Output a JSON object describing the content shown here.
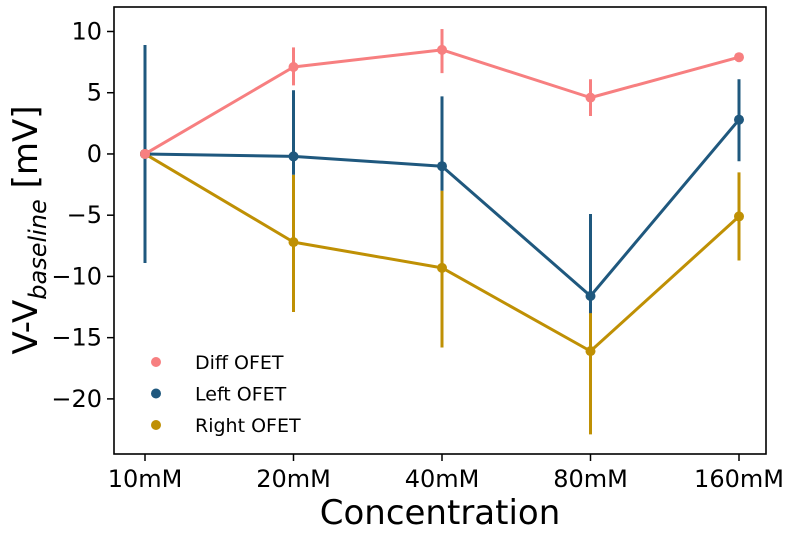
{
  "chart_data": {
    "type": "line",
    "title": "",
    "xlabel": "Concentration",
    "ylabel": {
      "main": "V-V",
      "subscript": "baseline",
      "unit": " [mV]"
    },
    "categories": [
      "10mM",
      "20mM",
      "40mM",
      "80mM",
      "160mM"
    ],
    "ylim": [
      -24.5,
      12
    ],
    "yticks": [
      10,
      5,
      0,
      -5,
      -10,
      -15,
      -20
    ],
    "ytick_labels": [
      "10",
      "5",
      "0",
      "−5",
      "−10",
      "−15",
      "−20"
    ],
    "grid": false,
    "legend_position": "lower-left",
    "series": [
      {
        "name": "Diff OFET",
        "color": "#F77F80",
        "values": [
          0,
          7.1,
          8.5,
          4.6,
          7.9
        ],
        "err_low": [
          0,
          5.6,
          6.6,
          3.1,
          7.6
        ],
        "err_high": [
          0,
          8.7,
          10.2,
          6.1,
          8.2
        ]
      },
      {
        "name": "Left OFET",
        "color": "#1F587E",
        "values": [
          0,
          -0.2,
          -1.0,
          -11.6,
          2.8
        ],
        "err_low": [
          -8.9,
          -1.7,
          -3.0,
          -13.0,
          -0.6
        ],
        "err_high": [
          8.9,
          5.2,
          4.7,
          -4.9,
          6.1
        ]
      },
      {
        "name": "Right OFET",
        "color": "#BF9004",
        "values": [
          0,
          -7.2,
          -9.3,
          -16.1,
          -5.1
        ],
        "err_low": [
          -8.9,
          -12.9,
          -15.8,
          -22.9,
          -8.7
        ],
        "err_high": [
          8.9,
          -1.7,
          -3.0,
          -9.6,
          -1.5
        ]
      }
    ]
  }
}
